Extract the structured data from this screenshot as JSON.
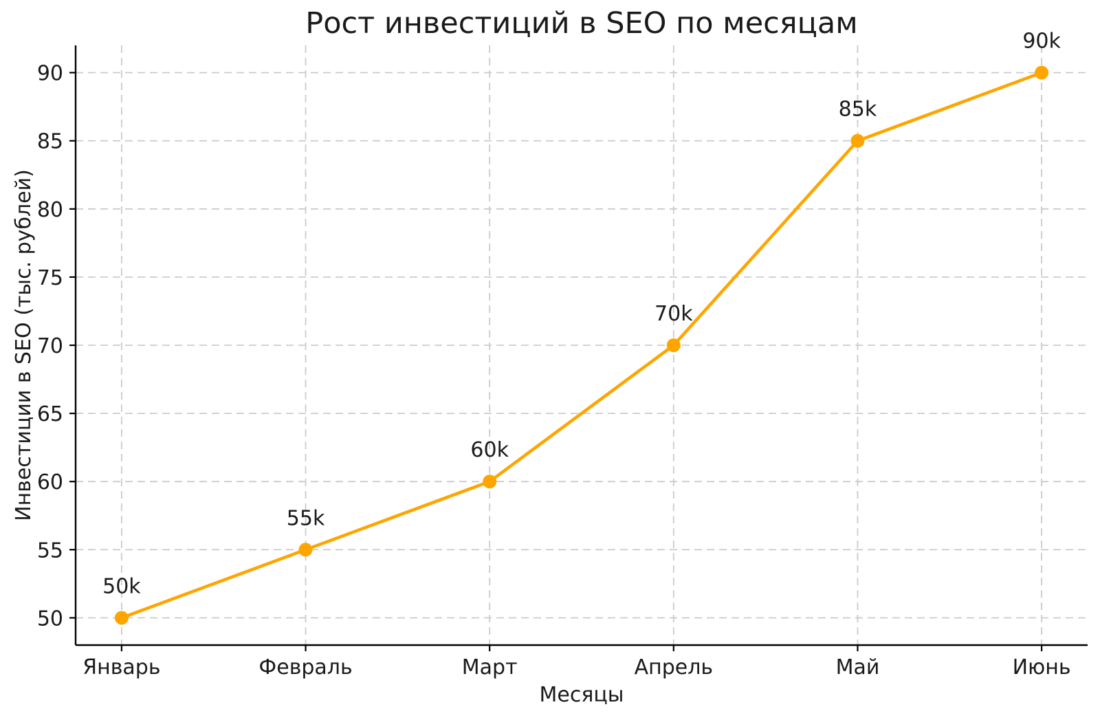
{
  "chart_data": {
    "type": "line",
    "title": "Рост инвестиций в SEO по месяцам",
    "xlabel": "Месяцы",
    "ylabel": "Инвестиции в SEO (тыс. рублей)",
    "categories": [
      "Январь",
      "Февраль",
      "Март",
      "Апрель",
      "Май",
      "Июнь"
    ],
    "series": [
      {
        "name": "Инвестиции в SEO",
        "values": [
          50,
          55,
          60,
          70,
          85,
          90
        ],
        "point_labels": [
          "50k",
          "55k",
          "60k",
          "70k",
          "85k",
          "90k"
        ]
      }
    ],
    "yticks": [
      50,
      55,
      60,
      65,
      70,
      75,
      80,
      85,
      90
    ],
    "ylim": [
      48,
      92
    ],
    "xlim": [
      -0.25,
      5.25
    ],
    "grid": "dashed horizontal and vertical",
    "legend_position": "none",
    "spines": "left and bottom only",
    "colors": {
      "line": "#FFA500",
      "marker": "#FFA500",
      "grid": "#cbcbcb",
      "spine": "#000000",
      "text": "#1a1a1a",
      "background": "#ffffff"
    }
  }
}
